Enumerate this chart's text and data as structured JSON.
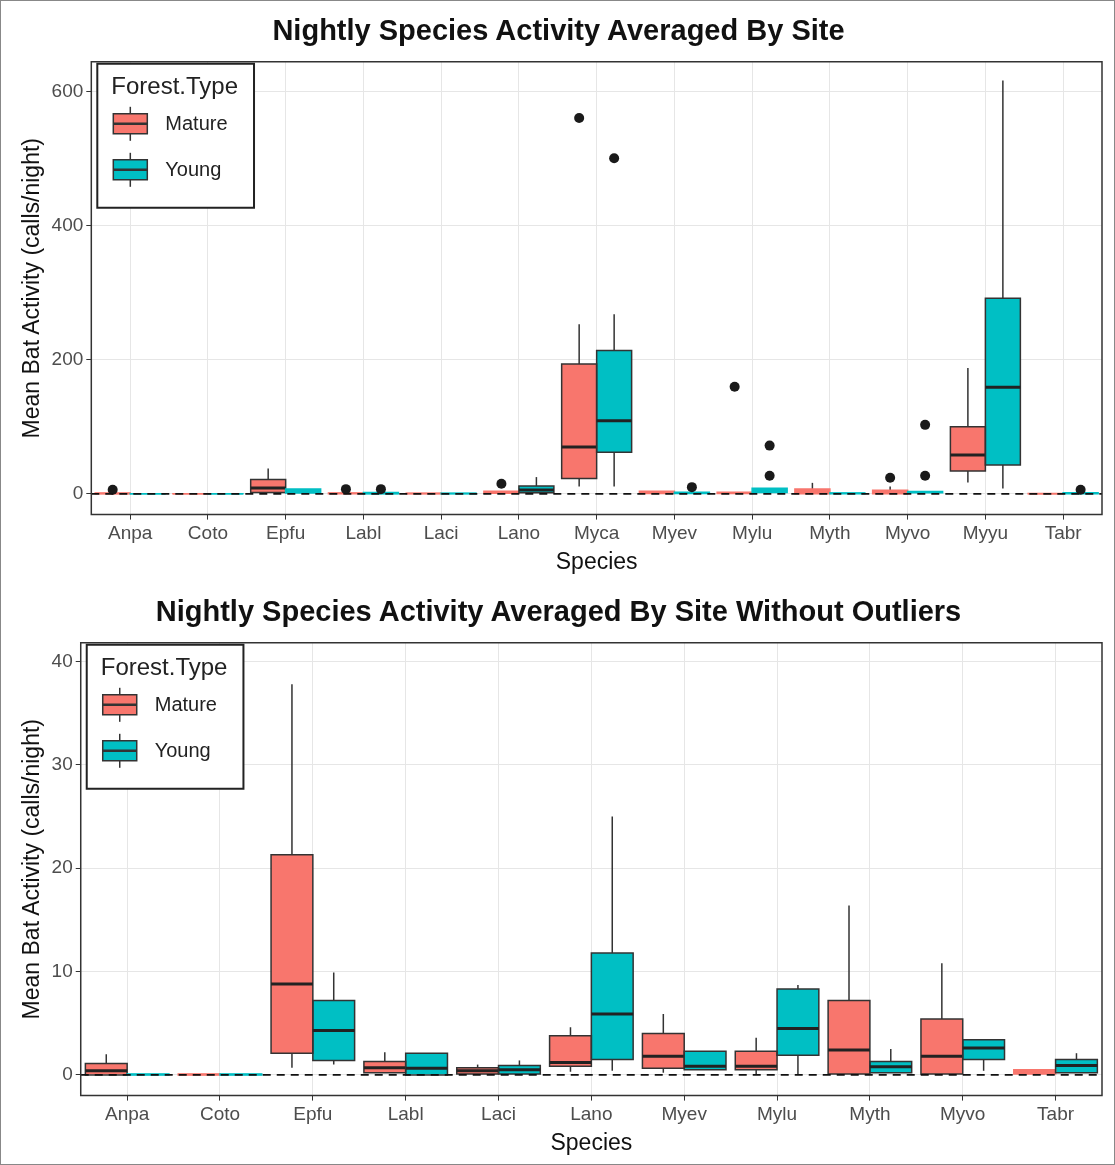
{
  "chart_data": [
    {
      "type": "box",
      "title": "Nightly Species Activity Averaged By Site",
      "xlabel": "Species",
      "ylabel": "Mean Bat Activity (calls/night)",
      "legend_title": "Forest.Type",
      "legend": "top left",
      "grid": true,
      "categories": [
        "Anpa",
        "Coto",
        "Epfu",
        "Labl",
        "Laci",
        "Lano",
        "Myca",
        "Myev",
        "Mylu",
        "Myth",
        "Myvo",
        "Myyu",
        "Tabr"
      ],
      "ylim": [
        -31,
        645
      ],
      "yticks": [
        0,
        200,
        400,
        600
      ],
      "ref_lines": [
        {
          "axis": "y",
          "value": 0,
          "line_style": "dashed"
        }
      ],
      "series": [
        {
          "name": "Mature",
          "color": "#f8766d",
          "boxes": [
            {
              "low": 0,
              "q1": 0,
              "median": 0.4,
              "q3": 1.1,
              "high": 2,
              "outliers": [
                6
              ]
            },
            {
              "low": 0,
              "q1": 0,
              "median": 0.05,
              "q3": 0.1,
              "high": 0.15
            },
            {
              "low": 0.7,
              "q1": 2.1,
              "median": 8.8,
              "q3": 21.3,
              "high": 37.8
            },
            {
              "low": 0,
              "q1": 0.2,
              "median": 0.7,
              "q3": 1.3,
              "high": 2.2,
              "outliers": [
                7
              ]
            },
            {
              "low": 0,
              "q1": 0.1,
              "median": 0.4,
              "q3": 0.7,
              "high": 1
            },
            {
              "low": 0.3,
              "q1": 0.85,
              "median": 1.2,
              "q3": 3.8,
              "high": 4.6,
              "outliers": [
                15
              ]
            },
            {
              "low": 11,
              "q1": 23,
              "median": 70,
              "q3": 194,
              "high": 253,
              "outliers": [
                561
              ]
            },
            {
              "low": 0.2,
              "q1": 0.65,
              "median": 1.8,
              "q3": 4,
              "high": 5.9
            },
            {
              "low": 0.1,
              "q1": 0.5,
              "median": 0.85,
              "q3": 2.3,
              "high": 3.6,
              "outliers": [
                160
              ]
            },
            {
              "low": 0,
              "q1": 0.1,
              "median": 2.4,
              "q3": 7.2,
              "high": 16.4
            },
            {
              "low": 0,
              "q1": 0.1,
              "median": 1.8,
              "q3": 5.4,
              "high": 10.8,
              "outliers": [
                24
              ]
            },
            {
              "low": 17,
              "q1": 34,
              "median": 58,
              "q3": 100,
              "high": 188
            },
            {
              "low": 0,
              "q1": 0.1,
              "median": 0.3,
              "q3": 0.5,
              "high": 0.6
            }
          ]
        },
        {
          "name": "Young",
          "color": "#00bfc4",
          "boxes": [
            {
              "low": 0,
              "q1": 0,
              "median": 0.05,
              "q3": 0.1,
              "high": 0.2
            },
            {
              "low": 0,
              "q1": 0,
              "median": 0.05,
              "q3": 0.1,
              "high": 0.15
            },
            {
              "low": 1,
              "q1": 1.4,
              "median": 4.3,
              "q3": 7.2,
              "high": 9.9
            },
            {
              "low": 0,
              "q1": 0,
              "median": 0.65,
              "q3": 2.1,
              "high": 2.3,
              "outliers": [
                7
              ]
            },
            {
              "low": 0,
              "q1": 0.1,
              "median": 0.5,
              "q3": 0.9,
              "high": 1.4
            },
            {
              "low": 0.4,
              "q1": 1.5,
              "median": 5.9,
              "q3": 11.8,
              "high": 25
            },
            {
              "low": 11,
              "q1": 62,
              "median": 109,
              "q3": 214,
              "high": 268,
              "outliers": [
                501
              ]
            },
            {
              "low": 0.3,
              "q1": 0.5,
              "median": 0.85,
              "q3": 2.3,
              "high": 2.5,
              "outliers": [
                10
              ]
            },
            {
              "low": 0,
              "q1": 1.9,
              "median": 4.5,
              "q3": 8.3,
              "high": 8.7,
              "outliers": [
                27,
                72
              ]
            },
            {
              "low": 0,
              "q1": 0.2,
              "median": 0.8,
              "q3": 1.3,
              "high": 2.5
            },
            {
              "low": 0.4,
              "q1": 1.5,
              "median": 2.6,
              "q3": 3.4,
              "high": 3.5,
              "outliers": [
                27,
                103
              ]
            },
            {
              "low": 8,
              "q1": 43,
              "median": 159,
              "q3": 292,
              "high": 617
            },
            {
              "low": 0,
              "q1": 0.2,
              "median": 0.9,
              "q3": 1.5,
              "high": 2.1,
              "outliers": [
                6
              ]
            }
          ]
        }
      ]
    },
    {
      "type": "box",
      "title": "Nightly Species Activity Averaged By Site Without Outliers",
      "xlabel": "Species",
      "ylabel": "Mean Bat Activity (calls/night)",
      "legend_title": "Forest.Type",
      "legend": "top left",
      "grid": true,
      "categories": [
        "Anpa",
        "Coto",
        "Epfu",
        "Labl",
        "Laci",
        "Lano",
        "Myev",
        "Mylu",
        "Myth",
        "Myvo",
        "Tabr"
      ],
      "ylim": [
        -2,
        41.8
      ],
      "yticks": [
        0,
        10,
        20,
        30,
        40
      ],
      "ref_lines": [
        {
          "axis": "y",
          "value": 0,
          "line_style": "dashed"
        }
      ],
      "series": [
        {
          "name": "Mature",
          "color": "#f8766d",
          "boxes": [
            {
              "low": 0,
              "q1": 0,
              "median": 0.4,
              "q3": 1.1,
              "high": 2
            },
            {
              "low": 0,
              "q1": 0,
              "median": 0.05,
              "q3": 0.1,
              "high": 0.15
            },
            {
              "low": 0.7,
              "q1": 2.1,
              "median": 8.8,
              "q3": 21.3,
              "high": 37.8
            },
            {
              "low": 0.2,
              "q1": 0.2,
              "median": 0.7,
              "q3": 1.3,
              "high": 2.2
            },
            {
              "low": 0,
              "q1": 0.1,
              "median": 0.4,
              "q3": 0.7,
              "high": 1
            },
            {
              "low": 0.3,
              "q1": 0.85,
              "median": 1.2,
              "q3": 3.8,
              "high": 4.6
            },
            {
              "low": 0.2,
              "q1": 0.65,
              "median": 1.8,
              "q3": 4,
              "high": 5.9
            },
            {
              "low": 0.1,
              "q1": 0.5,
              "median": 0.85,
              "q3": 2.3,
              "high": 3.6
            },
            {
              "low": 0,
              "q1": 0.1,
              "median": 2.4,
              "q3": 7.2,
              "high": 16.4
            },
            {
              "low": 0,
              "q1": 0.1,
              "median": 1.8,
              "q3": 5.4,
              "high": 10.8
            },
            {
              "low": 0,
              "q1": 0.1,
              "median": 0.3,
              "q3": 0.5,
              "high": 0.6
            }
          ]
        },
        {
          "name": "Young",
          "color": "#00bfc4",
          "boxes": [
            {
              "low": 0,
              "q1": 0,
              "median": 0.05,
              "q3": 0.1,
              "high": 0.2
            },
            {
              "low": 0,
              "q1": 0,
              "median": 0.05,
              "q3": 0.1,
              "high": 0.15
            },
            {
              "low": 1,
              "q1": 1.4,
              "median": 4.3,
              "q3": 7.2,
              "high": 9.9
            },
            {
              "low": 0,
              "q1": 0,
              "median": 0.65,
              "q3": 2.1,
              "high": 2.1
            },
            {
              "low": 0,
              "q1": 0.1,
              "median": 0.5,
              "q3": 0.9,
              "high": 1.4
            },
            {
              "low": 0.4,
              "q1": 1.5,
              "median": 5.9,
              "q3": 11.8,
              "high": 25
            },
            {
              "low": 0.5,
              "q1": 0.5,
              "median": 0.85,
              "q3": 2.3,
              "high": 2.3
            },
            {
              "low": 0,
              "q1": 1.9,
              "median": 4.5,
              "q3": 8.3,
              "high": 8.7
            },
            {
              "low": 0.2,
              "q1": 0.2,
              "median": 0.8,
              "q3": 1.3,
              "high": 2.5
            },
            {
              "low": 0.4,
              "q1": 1.5,
              "median": 2.6,
              "q3": 3.4,
              "high": 3.5
            },
            {
              "low": 0.2,
              "q1": 0.2,
              "median": 0.9,
              "q3": 1.5,
              "high": 2.1
            }
          ]
        }
      ]
    }
  ]
}
